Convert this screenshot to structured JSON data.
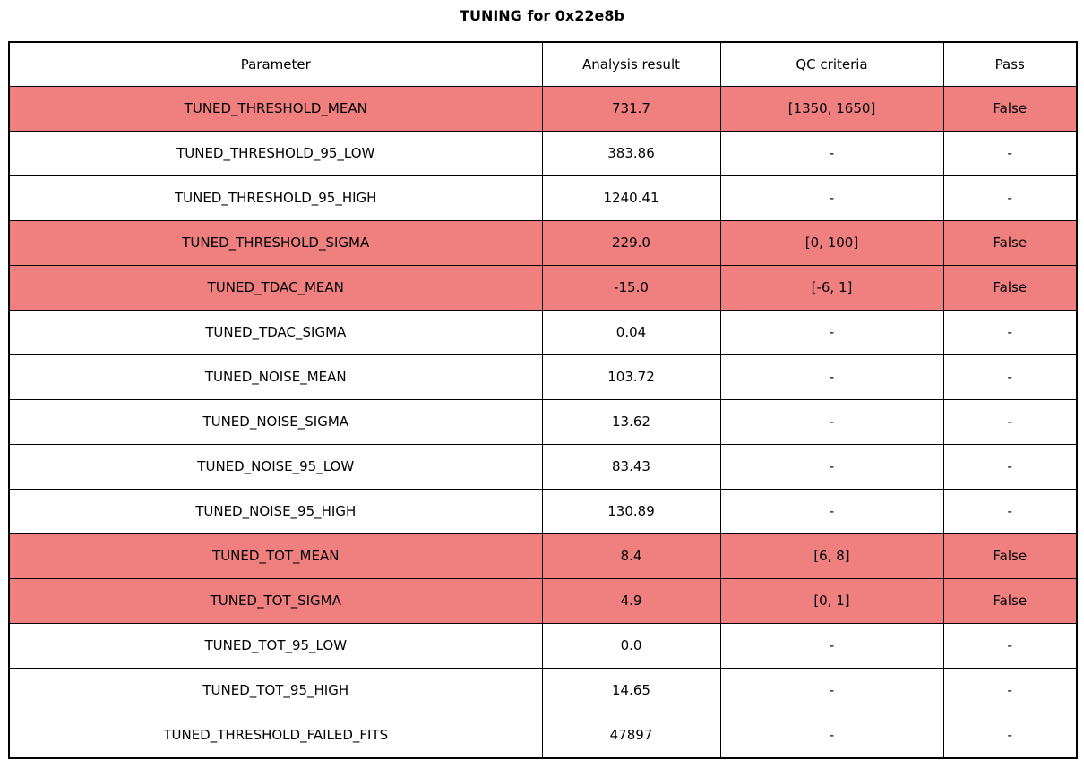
{
  "title": "TUNING for 0x22e8b",
  "colors": {
    "fail_row_bg": "#f08080",
    "border": "#000000",
    "background": "#ffffff",
    "text": "#000000"
  },
  "chart_data": {
    "type": "table",
    "title": "TUNING for 0x22e8b",
    "columns": [
      "Parameter",
      "Analysis result",
      "QC criteria",
      "Pass"
    ],
    "rows": [
      {
        "cells": [
          "TUNED_THRESHOLD_MEAN",
          "731.7",
          "[1350, 1650]",
          "False"
        ],
        "failed": true
      },
      {
        "cells": [
          "TUNED_THRESHOLD_95_LOW",
          "383.86",
          "-",
          "-"
        ],
        "failed": false
      },
      {
        "cells": [
          "TUNED_THRESHOLD_95_HIGH",
          "1240.41",
          "-",
          "-"
        ],
        "failed": false
      },
      {
        "cells": [
          "TUNED_THRESHOLD_SIGMA",
          "229.0",
          "[0, 100]",
          "False"
        ],
        "failed": true
      },
      {
        "cells": [
          "TUNED_TDAC_MEAN",
          "-15.0",
          "[-6, 1]",
          "False"
        ],
        "failed": true
      },
      {
        "cells": [
          "TUNED_TDAC_SIGMA",
          "0.04",
          "-",
          "-"
        ],
        "failed": false
      },
      {
        "cells": [
          "TUNED_NOISE_MEAN",
          "103.72",
          "-",
          "-"
        ],
        "failed": false
      },
      {
        "cells": [
          "TUNED_NOISE_SIGMA",
          "13.62",
          "-",
          "-"
        ],
        "failed": false
      },
      {
        "cells": [
          "TUNED_NOISE_95_LOW",
          "83.43",
          "-",
          "-"
        ],
        "failed": false
      },
      {
        "cells": [
          "TUNED_NOISE_95_HIGH",
          "130.89",
          "-",
          "-"
        ],
        "failed": false
      },
      {
        "cells": [
          "TUNED_TOT_MEAN",
          "8.4",
          "[6, 8]",
          "False"
        ],
        "failed": true
      },
      {
        "cells": [
          "TUNED_TOT_SIGMA",
          "4.9",
          "[0, 1]",
          "False"
        ],
        "failed": true
      },
      {
        "cells": [
          "TUNED_TOT_95_LOW",
          "0.0",
          "-",
          "-"
        ],
        "failed": false
      },
      {
        "cells": [
          "TUNED_TOT_95_HIGH",
          "14.65",
          "-",
          "-"
        ],
        "failed": false
      },
      {
        "cells": [
          "TUNED_THRESHOLD_FAILED_FITS",
          "47897",
          "-",
          "-"
        ],
        "failed": false
      }
    ]
  }
}
